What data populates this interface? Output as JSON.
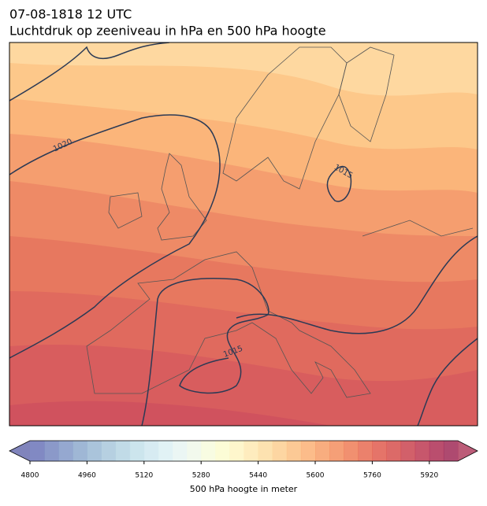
{
  "header": {
    "date": "07-08-1818 12 UTC",
    "title": "Luchtdruk op zeeniveau in hPa en 500 hPa hoogte"
  },
  "contour_labels": [
    "1020",
    "1015",
    "1015",
    "1015"
  ],
  "colorbar": {
    "label": "500 hPa hoogte in meter",
    "range": [
      4800,
      6000
    ],
    "ticks": [
      4800,
      4960,
      5120,
      5280,
      5440,
      5600,
      5760,
      5920
    ],
    "colors": [
      "#6b74b8",
      "#7787c0",
      "#8399c8",
      "#8eaace",
      "#9bbad5",
      "#a9c8dc",
      "#b6d5e3",
      "#c3e0ea",
      "#d0e8f0",
      "#dcf0f3",
      "#e7f5f2",
      "#f0f8ea",
      "#f7fbdd",
      "#fbfbcf",
      "#fef5c3",
      "#fee9b3",
      "#fddda2",
      "#fdcf92",
      "#fcc083",
      "#fbb075",
      "#f79f69",
      "#f38e5f",
      "#ee7c57",
      "#e86b52",
      "#e05c4f",
      "#d6504e",
      "#ca4450",
      "#bd3952",
      "#ae2f55",
      "#a02a57"
    ],
    "under_color": "#6a6fb0",
    "over_color": "#b04060"
  }
}
